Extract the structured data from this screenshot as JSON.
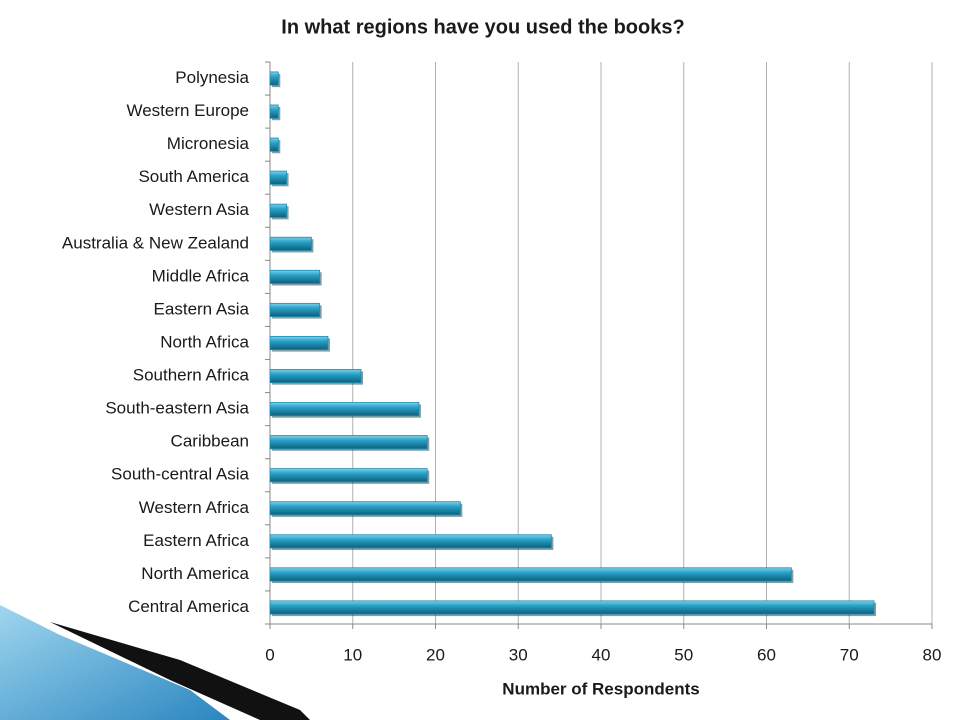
{
  "chart_data": {
    "type": "bar",
    "orientation": "horizontal",
    "title": "In what regions have you used the books?",
    "x_label": "Number of Respondents",
    "categories": [
      "Polynesia",
      "Western Europe",
      "Micronesia",
      "South America",
      "Western Asia",
      "Australia & New Zealand",
      "Middle Africa",
      "Eastern Asia",
      "North Africa",
      "Southern Africa",
      "South-eastern Asia",
      "Caribbean",
      "South-central Asia",
      "Western Africa",
      "Eastern Africa",
      "North America",
      "Central America"
    ],
    "values": [
      1,
      1,
      1,
      2,
      2,
      5,
      6,
      6,
      7,
      11,
      18,
      19,
      19,
      23,
      34,
      63,
      73
    ],
    "color": "#1b8db0",
    "xlim": [
      0,
      80
    ],
    "xticks": [
      0,
      10,
      20,
      30,
      40,
      50,
      60,
      70,
      80
    ],
    "grid": true
  }
}
